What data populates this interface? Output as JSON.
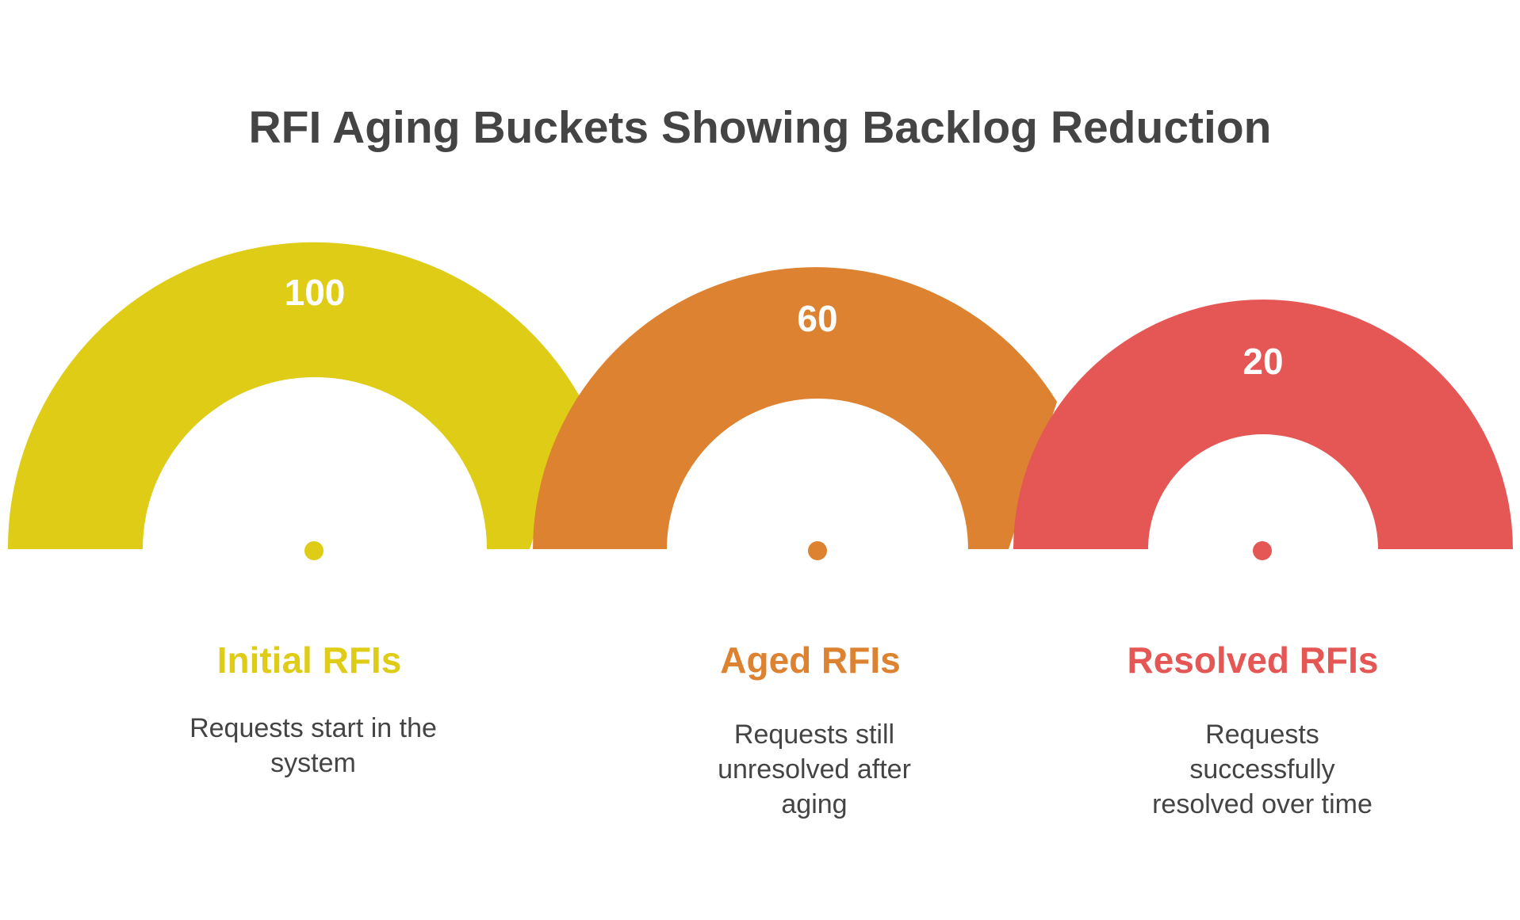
{
  "title": "RFI Aging Buckets Showing Backlog Reduction",
  "stages": [
    {
      "label": "Initial RFIs",
      "value": "100",
      "description": "Requests start in the system",
      "color": "#DFCC16"
    },
    {
      "label": "Aged RFIs",
      "value": "60",
      "description": "Requests still unresolved after aging",
      "color": "#DD8231"
    },
    {
      "label": "Resolved RFIs",
      "value": "20",
      "description": "Requests successfully resolved over time",
      "color": "#E45755"
    }
  ]
}
